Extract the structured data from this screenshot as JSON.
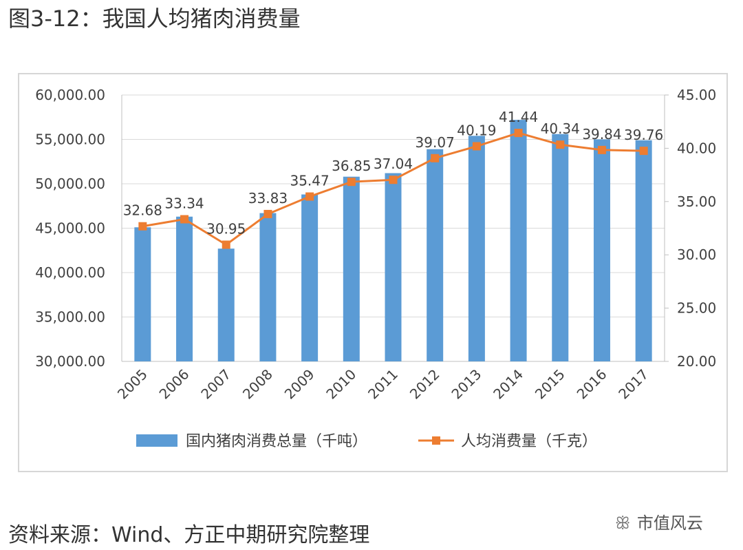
{
  "figure": {
    "title": "图3-12：我国人均猪肉消费量",
    "source": "资料来源：Wind、方正中期研究院整理",
    "watermark": "市值风云",
    "watermark_icon": "wechat-icon"
  },
  "colors": {
    "bar": "#5b9bd5",
    "line": "#ed7d31",
    "grid": "#d9d9d9",
    "axis_text": "#404040"
  },
  "chart_data": {
    "type": "bar+line",
    "title": "",
    "categories": [
      "2005",
      "2006",
      "2007",
      "2008",
      "2009",
      "2010",
      "2011",
      "2012",
      "2013",
      "2014",
      "2015",
      "2016",
      "2017"
    ],
    "series": [
      {
        "name": "国内猪肉消费总量（千吨）",
        "type": "bar",
        "axis": "left",
        "values": [
          45100,
          46300,
          42700,
          46700,
          48800,
          50800,
          51200,
          53900,
          55400,
          57200,
          55600,
          55000,
          54900
        ]
      },
      {
        "name": "人均消费量（千克）",
        "type": "line",
        "axis": "right",
        "values": [
          32.68,
          33.34,
          30.95,
          33.83,
          35.47,
          36.85,
          37.04,
          39.07,
          40.19,
          41.44,
          40.34,
          39.84,
          39.76
        ],
        "labels": [
          "32.68",
          "33.34",
          "30.95",
          "33.83",
          "35.47",
          "36.85",
          "37.04",
          "39.07",
          "40.19",
          "41.44",
          "40.34",
          "39.84",
          "39.76"
        ]
      }
    ],
    "y_left": {
      "min": 30000,
      "max": 60000,
      "ticks": [
        30000,
        35000,
        40000,
        45000,
        50000,
        55000,
        60000
      ],
      "tick_labels": [
        "30,000.00",
        "35,000.00",
        "40,000.00",
        "45,000.00",
        "50,000.00",
        "55,000.00",
        "60,000.00"
      ]
    },
    "y_right": {
      "min": 20,
      "max": 45,
      "ticks": [
        20,
        25,
        30,
        35,
        40,
        45
      ],
      "tick_labels": [
        "20.00",
        "25.00",
        "30.00",
        "35.00",
        "40.00",
        "45.00"
      ]
    },
    "grid": true,
    "legend_position": "bottom"
  }
}
